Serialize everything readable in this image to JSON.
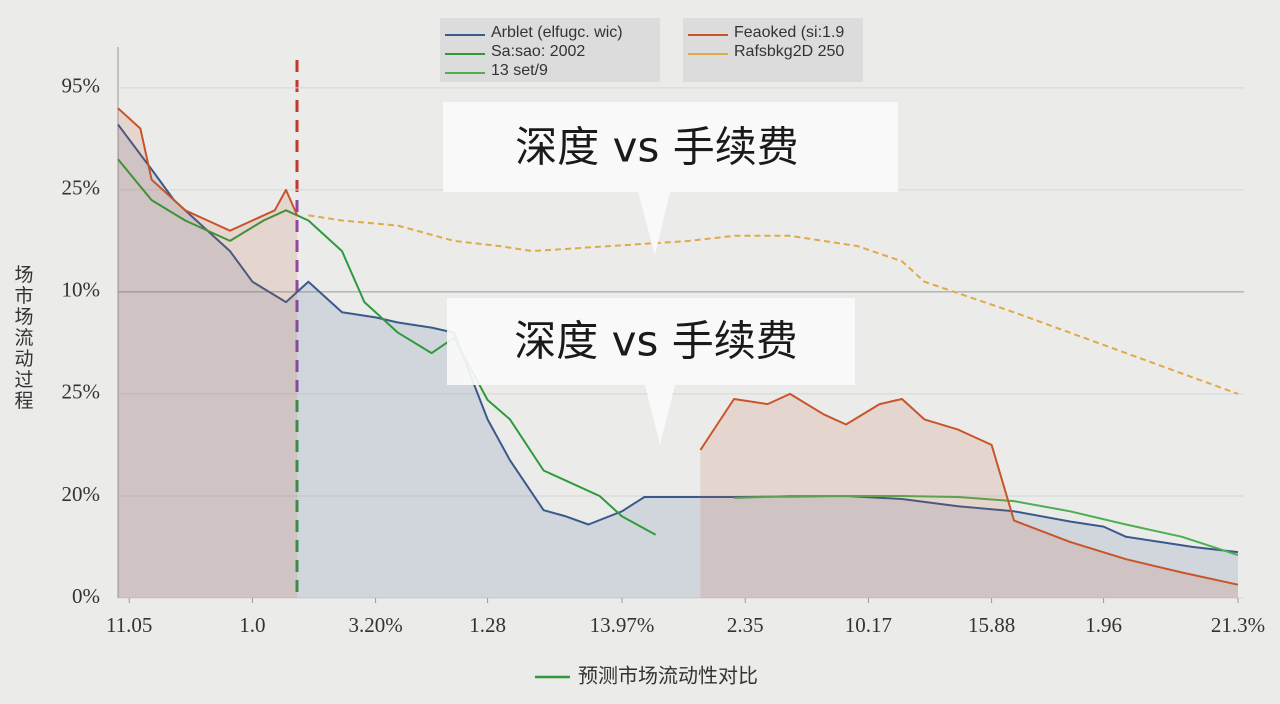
{
  "chart_data": {
    "type": "line",
    "y_label": "场市场流动过程",
    "x_label": "预测市场流动性对比",
    "callouts": [
      "深度 vs 手续费",
      "深度 vs 手续费"
    ],
    "xlim": [
      0,
      100
    ],
    "xticks": [
      {
        "value": 1,
        "label": "11.05"
      },
      {
        "value": 12,
        "label": "1.0"
      },
      {
        "value": 23,
        "label": "3.20%"
      },
      {
        "value": 33,
        "label": "1.28"
      },
      {
        "value": 45,
        "label": "13.97%"
      },
      {
        "value": 56,
        "label": "2.35"
      },
      {
        "value": 67,
        "label": "10.17"
      },
      {
        "value": 78,
        "label": "15.88"
      },
      {
        "value": 88,
        "label": "1.96"
      },
      {
        "value": 100,
        "label": "21.3%"
      }
    ],
    "ylim": [
      0,
      5.4
    ],
    "yticks": [
      {
        "value": 0,
        "label": "0%"
      },
      {
        "value": 1,
        "label": "20%"
      },
      {
        "value": 2,
        "label": "25%"
      },
      {
        "value": 3,
        "label": "10%"
      },
      {
        "value": 4,
        "label": "25%"
      },
      {
        "value": 5,
        "label": "95%"
      }
    ],
    "grid": true,
    "series": [
      {
        "name": "Arblet (elfugc. wic)",
        "color": "#3a5a8c",
        "dash": false,
        "fill": true,
        "x": [
          0,
          3,
          5,
          8,
          10,
          12,
          15,
          17,
          20,
          23,
          25,
          28,
          30,
          33,
          35,
          38,
          40,
          42,
          45,
          47,
          55,
          65,
          70,
          75,
          80,
          85,
          88,
          90,
          93,
          96,
          100
        ],
        "values": [
          4.64,
          4.2,
          3.9,
          3.6,
          3.4,
          3.1,
          2.9,
          3.1,
          2.8,
          2.75,
          2.7,
          2.65,
          2.6,
          1.75,
          1.35,
          0.86,
          0.8,
          0.72,
          0.85,
          0.99,
          0.99,
          1.0,
          0.97,
          0.9,
          0.85,
          0.75,
          0.7,
          0.6,
          0.55,
          0.5,
          0.45
        ]
      },
      {
        "name": "Sa:sao: 2002",
        "color": "#2f9a3c",
        "dash": false,
        "fill": false,
        "x": [
          0,
          3,
          6,
          10,
          13,
          15,
          17,
          20,
          22,
          25,
          28,
          30,
          33,
          35,
          38,
          40,
          43,
          45,
          48
        ],
        "values": [
          4.3,
          3.9,
          3.7,
          3.5,
          3.7,
          3.8,
          3.7,
          3.4,
          2.9,
          2.6,
          2.4,
          2.55,
          1.94,
          1.75,
          1.25,
          1.15,
          1.0,
          0.8,
          0.62
        ]
      },
      {
        "name": "13 set/9",
        "color": "#4caf50",
        "dash": false,
        "fill": false,
        "x": [
          55,
          60,
          65,
          70,
          75,
          80,
          85,
          90,
          95,
          100
        ],
        "values": [
          0.98,
          1.0,
          1.0,
          1.0,
          0.99,
          0.95,
          0.85,
          0.72,
          0.6,
          0.42
        ]
      },
      {
        "name": "Feaoked (si:1.9",
        "color": "#c8552a",
        "dash": false,
        "fill": true,
        "x": [
          0,
          2,
          3,
          6,
          8,
          10,
          12,
          14,
          15,
          16,
          50,
          52,
          55,
          58,
          60,
          63,
          65,
          68,
          70,
          72,
          75,
          78,
          80,
          85,
          90,
          95,
          100
        ],
        "values": [
          4.8,
          4.6,
          4.1,
          3.8,
          3.7,
          3.6,
          3.7,
          3.8,
          4.0,
          3.75,
          null,
          1.45,
          1.95,
          1.9,
          2.0,
          1.8,
          1.7,
          1.9,
          1.95,
          1.75,
          1.65,
          1.5,
          0.76,
          0.55,
          0.38,
          0.25,
          0.13
        ]
      },
      {
        "name": "Rafsbkg2D 250",
        "color": "#e0a94a",
        "dash": true,
        "fill": false,
        "x": [
          17,
          20,
          25,
          30,
          34,
          37,
          51,
          55,
          60,
          66,
          70,
          72,
          76,
          80,
          85,
          90,
          95,
          100
        ],
        "values": [
          3.75,
          3.7,
          3.65,
          3.5,
          3.45,
          3.4,
          3.5,
          3.55,
          3.55,
          3.45,
          3.3,
          3.1,
          2.95,
          2.8,
          2.6,
          2.4,
          2.2,
          2.0
        ]
      }
    ]
  }
}
